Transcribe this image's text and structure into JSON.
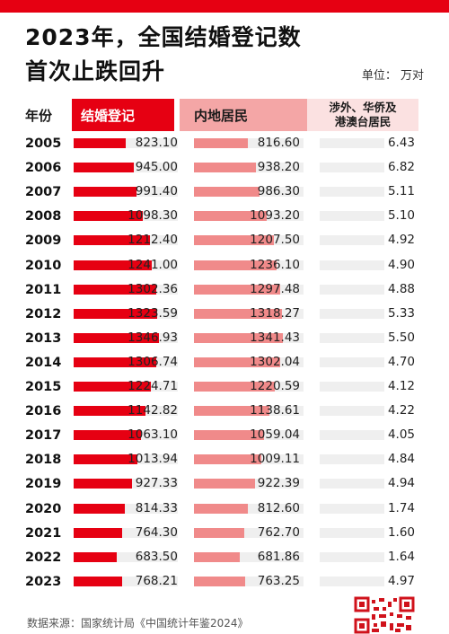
{
  "header": {
    "title_line1": "2023年，全国结婚登记数",
    "title_line2": "首次止跌回升",
    "unit": "单位：  万对"
  },
  "columns": {
    "year": "年份",
    "marriage": "结婚登记",
    "mainland": "内地居民",
    "foreign_line1": "涉外、华侨及",
    "foreign_line2": "港澳台居民"
  },
  "source": "数据来源：国家统计局《中国统计年鉴2024》",
  "colors": {
    "accent": "#e60012",
    "mainland": "#f08a8a",
    "foreign": "#f6c4c4"
  },
  "chart_data": {
    "type": "table",
    "categories": [
      "2005",
      "2006",
      "2007",
      "2008",
      "2009",
      "2010",
      "2011",
      "2012",
      "2013",
      "2014",
      "2015",
      "2016",
      "2017",
      "2018",
      "2019",
      "2020",
      "2021",
      "2022",
      "2023"
    ],
    "series": [
      {
        "name": "结婚登记",
        "values": [
          "823.10",
          "945.00",
          "991.40",
          "1098.30",
          "1212.40",
          "1241.00",
          "1302.36",
          "1323.59",
          "1346.93",
          "1306.74",
          "1224.71",
          "1142.82",
          "1063.10",
          "1013.94",
          "927.33",
          "814.33",
          "764.30",
          "683.50",
          "768.21"
        ]
      },
      {
        "name": "内地居民",
        "values": [
          "816.60",
          "938.20",
          "986.30",
          "1093.20",
          "1207.50",
          "1236.10",
          "1297.48",
          "1318.27",
          "1341.43",
          "1302.04",
          "1220.59",
          "1138.61",
          "1059.04",
          "1009.11",
          "922.39",
          "812.60",
          "762.70",
          "681.86",
          "763.25"
        ]
      },
      {
        "name": "涉外、华侨及港澳台居民",
        "values": [
          "6.43",
          "6.82",
          "5.11",
          "5.10",
          "4.92",
          "4.90",
          "4.88",
          "5.33",
          "5.50",
          "4.70",
          "4.12",
          "4.22",
          "4.05",
          "4.84",
          "4.94",
          "1.74",
          "1.60",
          "1.64",
          "4.97"
        ]
      }
    ]
  }
}
